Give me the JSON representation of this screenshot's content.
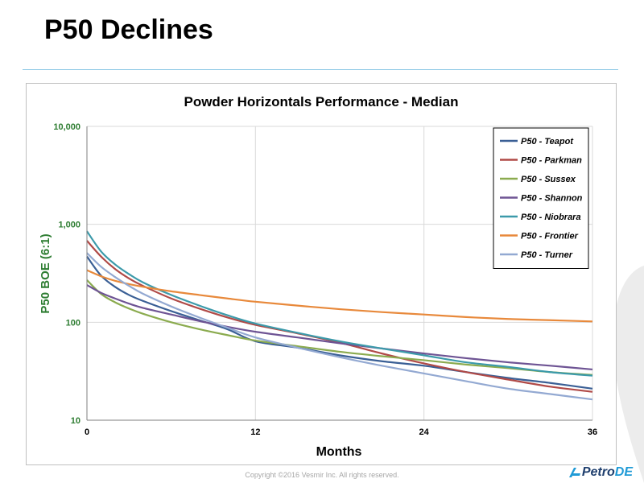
{
  "slide": {
    "title": "P50 Declines",
    "footer": "Copyright ©2016 Vesmir Inc. All rights reserved.",
    "logo_text": "Petro",
    "logo_accent": "DE"
  },
  "chart_data": {
    "type": "line",
    "title": "Powder Horizontals Performance - Median",
    "xlabel": "Months",
    "ylabel": "P50 BOE (6:1)",
    "xlim": [
      0,
      36
    ],
    "ylim": [
      10,
      10000
    ],
    "y_scale": "log",
    "x_ticks": [
      0,
      12,
      24,
      36
    ],
    "x_tick_labels": [
      "0",
      "12",
      "24",
      "36"
    ],
    "y_ticks": [
      10,
      100,
      1000,
      10000
    ],
    "y_tick_labels": [
      "10",
      "100",
      "1,000",
      "10,000"
    ],
    "grid": true,
    "legend_position": "top-right",
    "x": [
      0,
      1,
      2,
      3,
      4,
      6,
      8,
      10,
      12,
      15,
      18,
      21,
      24,
      27,
      30,
      33,
      36
    ],
    "series": [
      {
        "name": "P50 - Teapot",
        "color": "#3a5f95",
        "values": [
          470,
          300,
          230,
          190,
          165,
          130,
          105,
          85,
          64,
          55,
          46,
          40,
          36,
          31,
          27,
          24,
          21
        ]
      },
      {
        "name": "P50 - Parkman",
        "color": "#b04a47",
        "values": [
          680,
          470,
          350,
          280,
          235,
          175,
          138,
          112,
          94,
          77,
          62,
          48,
          38,
          31,
          26,
          22,
          19.5
        ]
      },
      {
        "name": "P50 - Sussex",
        "color": "#8bab4f",
        "values": [
          270,
          195,
          160,
          138,
          122,
          100,
          85,
          74,
          65,
          57,
          50,
          45,
          41,
          37,
          34,
          31,
          29
        ]
      },
      {
        "name": "P50 - Shannon",
        "color": "#6e5494",
        "values": [
          240,
          200,
          175,
          155,
          140,
          120,
          103,
          90,
          80,
          70,
          61,
          54,
          48,
          43,
          39,
          36,
          33
        ]
      },
      {
        "name": "P50 - Niobrara",
        "color": "#3c9aaa",
        "values": [
          850,
          530,
          390,
          310,
          255,
          190,
          148,
          118,
          97,
          78,
          64,
          54,
          46,
          39,
          35,
          31,
          28.5
        ]
      },
      {
        "name": "P50 - Frontier",
        "color": "#e8893b",
        "values": [
          340,
          295,
          265,
          245,
          230,
          207,
          190,
          175,
          162,
          148,
          136,
          127,
          120,
          113,
          108,
          105,
          102
        ]
      },
      {
        "name": "P50 - Turner",
        "color": "#93a9d2",
        "values": [
          510,
          370,
          290,
          235,
          195,
          145,
          112,
          88,
          70,
          55,
          44,
          36,
          30,
          25,
          21,
          18.5,
          16.3
        ]
      }
    ]
  }
}
